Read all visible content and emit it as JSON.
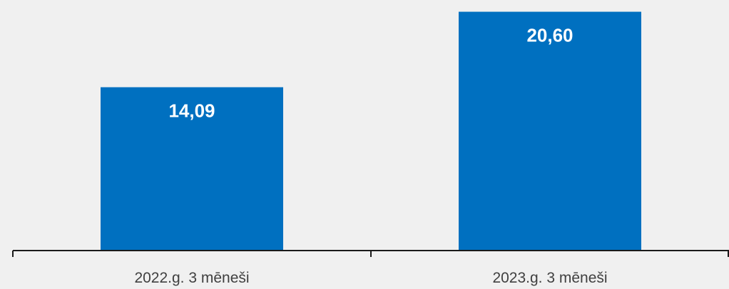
{
  "colors": {
    "background": "#f0f0f0",
    "bar": "#0070c0",
    "axis": "#1a1a1a",
    "bar_label": "#ffffff",
    "category_label": "#404040"
  },
  "chart_data": {
    "type": "bar",
    "categories": [
      "2022.g. 3 mēneši",
      "2023.g. 3 mēneši"
    ],
    "values": [
      14.09,
      20.6
    ],
    "value_labels": [
      "14,09",
      "20,60"
    ],
    "title": "",
    "xlabel": "",
    "ylabel": "",
    "ylim": [
      0,
      21
    ],
    "grid": false,
    "legend": "none"
  }
}
